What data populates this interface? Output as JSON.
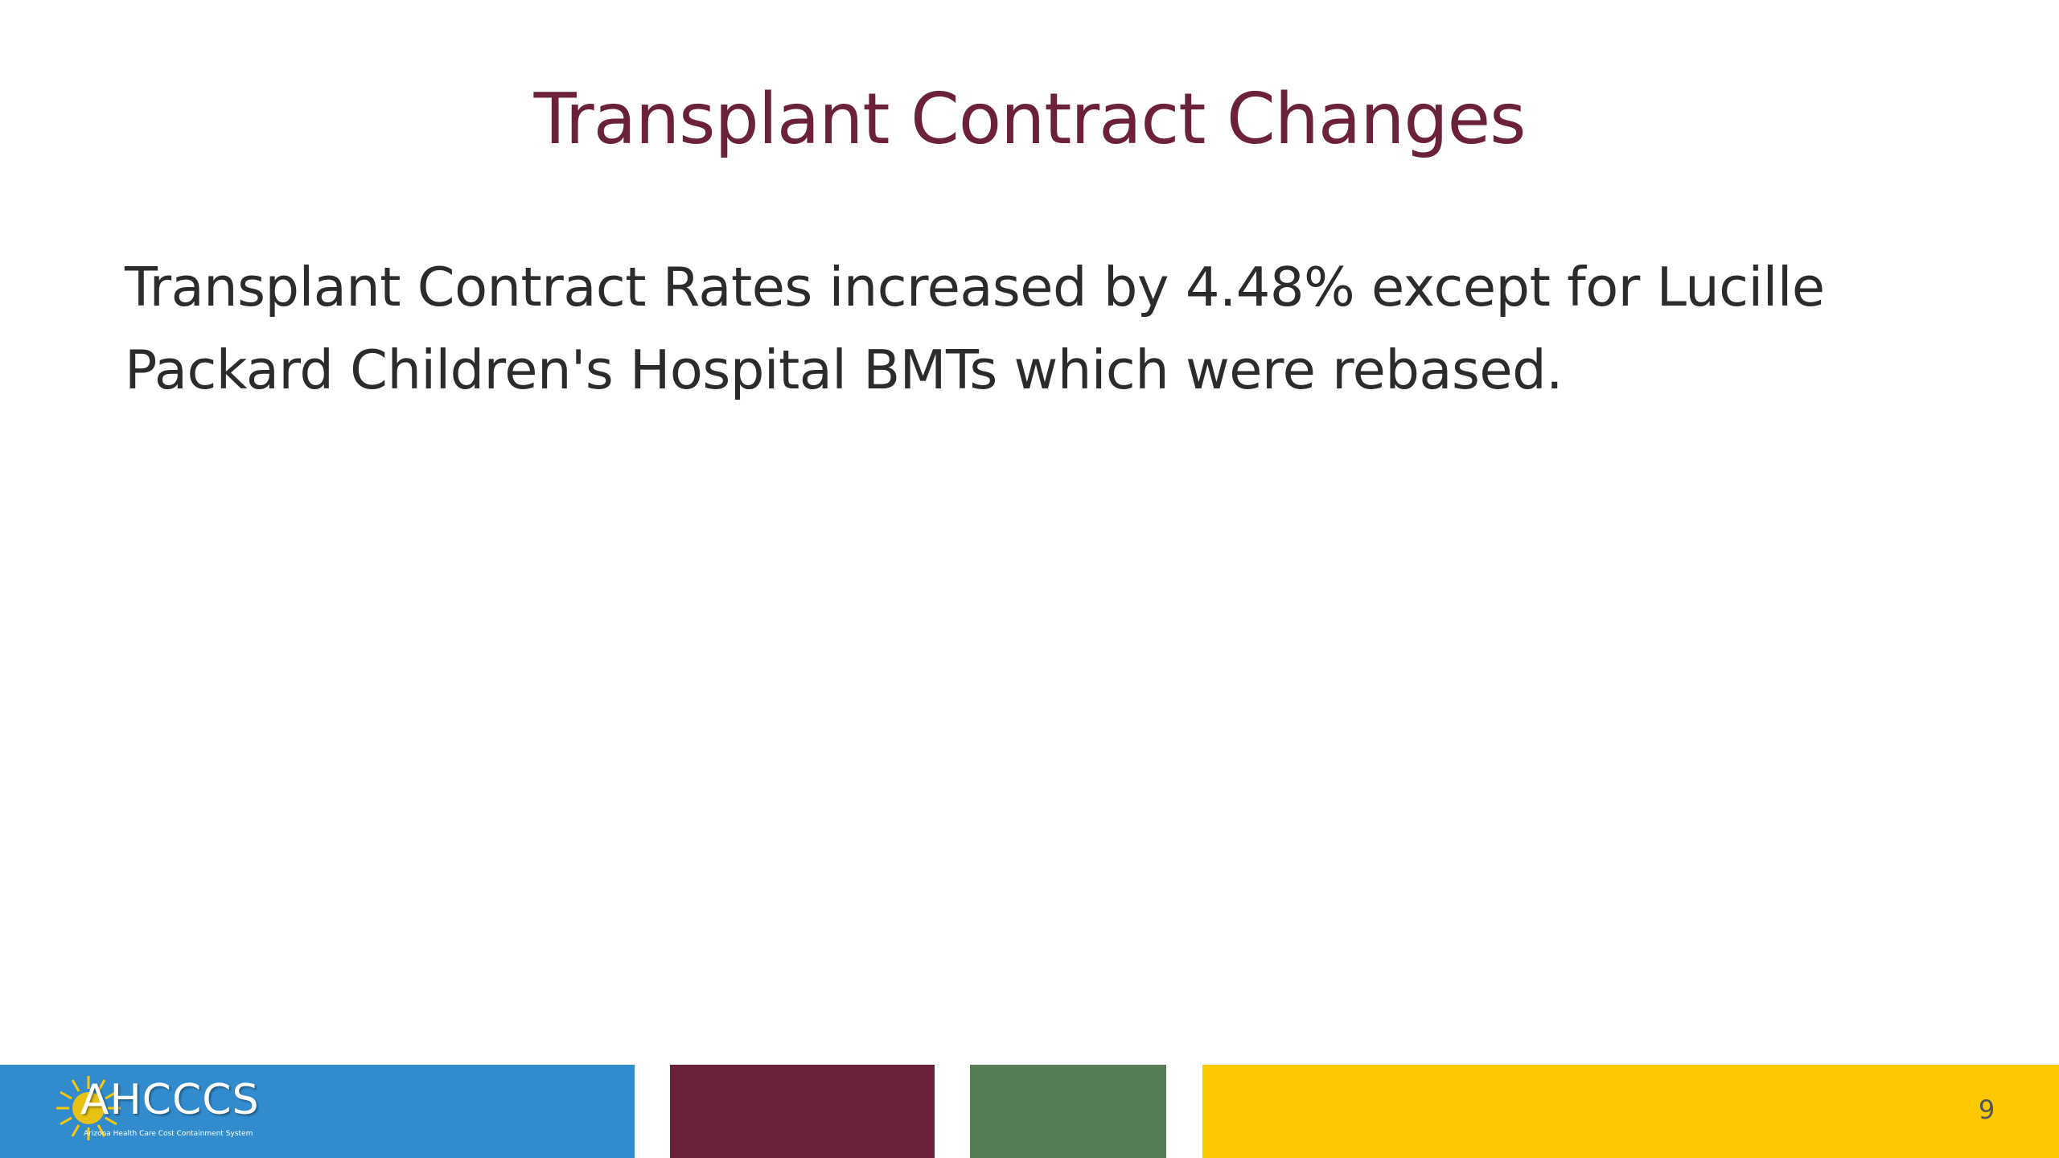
{
  "slide": {
    "title": "Transplant Contract Changes",
    "body": "Transplant Contract Rates increased by 4.48% except for Lucille Packard Children's Hospital BMTs which were rebased.",
    "page_number": "9"
  },
  "footer": {
    "logo_text": "AHCCCS",
    "logo_tagline": "Arizona Health Care Cost Containment System",
    "logo_icon": "sun-icon",
    "colors": {
      "blue": "#318bcc",
      "maroon": "#6b2239",
      "green": "#557c54",
      "yellow": "#fcc800"
    }
  },
  "colors": {
    "title": "#6b2239",
    "body": "#2b2b2b",
    "background": "#ffffff"
  }
}
